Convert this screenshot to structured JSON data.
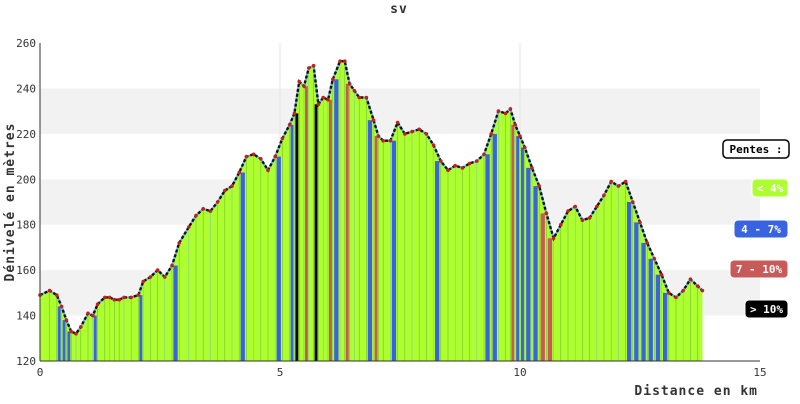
{
  "chart_data": {
    "type": "area",
    "title": "sv",
    "xlabel": "Distance en km",
    "ylabel": "Dénivelé en mètres",
    "xlim": [
      0,
      15
    ],
    "ylim": [
      120,
      260
    ],
    "x_ticks": [
      0,
      5,
      10,
      15
    ],
    "y_ticks": [
      120,
      140,
      160,
      180,
      200,
      220,
      240,
      260
    ],
    "grid": "horizontal bands",
    "legend": {
      "placement": "right",
      "title": "Pentes :",
      "items": [
        {
          "label": "< 4%",
          "color": "#adff2f",
          "text_color": "#ffffff"
        },
        {
          "label": "4 - 7%",
          "color": "#3a63e0",
          "text_color": "#ffffff"
        },
        {
          "label": "7 - 10%",
          "color": "#c85a5a",
          "text_color": "#ffffff"
        },
        {
          "label": "> 10%",
          "color": "#000000",
          "text_color": "#ffffff"
        }
      ]
    },
    "series": [
      {
        "x": [
          0,
          0.2,
          0.35,
          0.45,
          0.55,
          0.65,
          0.75,
          0.85,
          1.0,
          1.1,
          1.2,
          1.35,
          1.45,
          1.55,
          1.65,
          1.75,
          1.9,
          2.05,
          2.15,
          2.3,
          2.45,
          2.6,
          2.75,
          2.9,
          3.1,
          3.25,
          3.4,
          3.55,
          3.7,
          3.85,
          4.0,
          4.15,
          4.3,
          4.45,
          4.6,
          4.75,
          4.9,
          5.05,
          5.2,
          5.3,
          5.4,
          5.5,
          5.6,
          5.7,
          5.8,
          5.9,
          6.0,
          6.1,
          6.25,
          6.35,
          6.45,
          6.55,
          6.65,
          6.8,
          6.95,
          7.05,
          7.15,
          7.3,
          7.45,
          7.6,
          7.75,
          7.9,
          8.05,
          8.2,
          8.35,
          8.5,
          8.65,
          8.8,
          8.95,
          9.1,
          9.25,
          9.4,
          9.55,
          9.7,
          9.8,
          9.9,
          10.0,
          10.1,
          10.25,
          10.4,
          10.55,
          10.7,
          10.85,
          11.0,
          11.15,
          11.3,
          11.45,
          11.6,
          11.75,
          11.9,
          12.05,
          12.2,
          12.35,
          12.5,
          12.65,
          12.8,
          12.95,
          13.1,
          13.25,
          13.4,
          13.55,
          13.7,
          13.8
        ],
        "y": [
          149,
          151,
          149,
          144,
          138,
          133,
          132,
          135,
          141,
          140,
          145,
          148,
          148,
          147,
          147,
          148,
          148,
          149,
          155,
          157,
          160,
          157,
          162,
          172,
          179,
          184,
          187,
          186,
          190,
          195,
          197,
          203,
          210,
          211,
          209,
          204,
          210,
          218,
          224,
          229,
          243,
          241,
          249,
          250,
          233,
          236,
          235,
          244,
          252,
          252,
          242,
          239,
          236,
          236,
          226,
          219,
          217,
          217,
          225,
          220,
          221,
          222,
          220,
          215,
          208,
          204,
          206,
          205,
          207,
          208,
          211,
          220,
          230,
          229,
          231,
          224,
          219,
          214,
          205,
          197,
          185,
          174,
          180,
          186,
          188,
          182,
          183,
          188,
          193,
          199,
          197,
          199,
          190,
          181,
          172,
          165,
          158,
          150,
          148,
          151,
          156,
          153,
          151
        ]
      }
    ]
  }
}
